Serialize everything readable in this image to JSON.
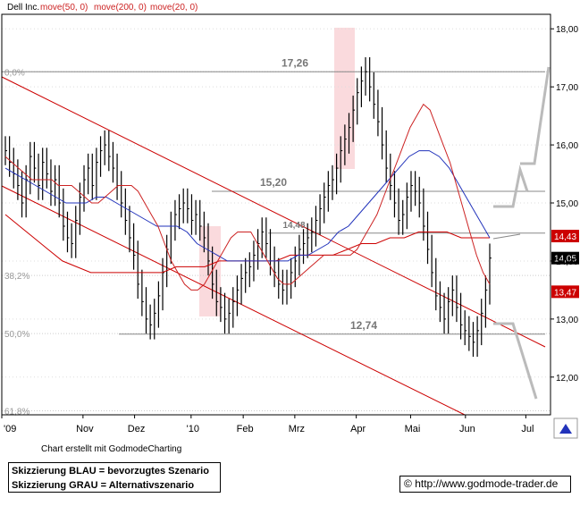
{
  "chart_data": {
    "type": "line",
    "title": "Dell Inc.",
    "series_labels": [
      "move(50, 0)",
      "move(200, 0)",
      "move(20, 0)"
    ],
    "x_ticks": [
      "'09",
      "Nov",
      "Dez",
      "'10",
      "Feb",
      "Mrz",
      "Apr",
      "Mai",
      "Jun",
      "Jul"
    ],
    "y_ticks": [
      "18,00",
      "17,00",
      "16,00",
      "15,00",
      "14,00",
      "13,00",
      "12,00"
    ],
    "ylim": [
      11.35,
      18.25
    ],
    "fib_levels": [
      {
        "label": "0,0%",
        "value": 17.26
      },
      {
        "label": "38,2%",
        "value": 13.75
      },
      {
        "label": "50,0%",
        "value": 12.75
      },
      {
        "label": "61,8%",
        "value": 11.42
      }
    ],
    "support_resistance": [
      {
        "label": "17,26",
        "value": 17.26
      },
      {
        "label": "15,20",
        "value": 15.2
      },
      {
        "label": "14,48",
        "value": 14.48
      },
      {
        "label": "12,74",
        "value": 12.74
      }
    ],
    "price_tags": [
      {
        "label": "14,43",
        "value": 14.43,
        "color": "#cc0000"
      },
      {
        "label": "14,05",
        "value": 14.05,
        "color": "#000000"
      },
      {
        "label": "13,47",
        "value": 13.47,
        "color": "#cc0000"
      }
    ],
    "closes": [
      15.9,
      15.7,
      15.5,
      15.3,
      15.0,
      15.4,
      15.8,
      15.6,
      15.3,
      15.7,
      15.5,
      15.2,
      15.4,
      15.0,
      14.6,
      14.4,
      14.3,
      14.7,
      15.1,
      15.4,
      15.6,
      15.3,
      15.7,
      15.9,
      16.0,
      15.8,
      15.6,
      15.3,
      15.0,
      14.7,
      14.4,
      14.1,
      13.6,
      13.3,
      13.0,
      12.9,
      13.1,
      13.4,
      13.8,
      14.2,
      14.6,
      14.8,
      14.9,
      15.0,
      14.9,
      14.7,
      14.8,
      14.6,
      14.4,
      14.0,
      13.6,
      13.3,
      13.2,
      13.0,
      13.1,
      13.3,
      13.5,
      13.7,
      13.8,
      13.9,
      14.1,
      14.3,
      14.5,
      14.3,
      14.0,
      13.8,
      13.6,
      13.5,
      13.6,
      13.8,
      14.0,
      14.2,
      14.3,
      14.4,
      14.5,
      14.7,
      14.9,
      15.1,
      15.3,
      15.4,
      15.6,
      15.9,
      16.1,
      16.3,
      16.6,
      16.9,
      17.1,
      17.26,
      17.0,
      16.7,
      16.4,
      16.0,
      15.6,
      15.3,
      15.0,
      14.7,
      14.8,
      15.1,
      15.3,
      15.2,
      15.0,
      14.6,
      14.2,
      13.8,
      13.4,
      13.2,
      13.0,
      13.3,
      13.5,
      13.2,
      12.9,
      12.8,
      12.7,
      12.6,
      12.8,
      13.1,
      13.5,
      14.05
    ],
    "ma20": [
      15.8,
      15.7,
      15.6,
      15.5,
      15.4,
      15.4,
      15.4,
      15.4,
      15.3,
      15.3,
      15.3,
      15.2,
      15.1,
      15.0,
      15.0,
      15.1,
      15.2,
      15.3,
      15.3,
      15.3,
      15.2,
      15.0,
      14.8,
      14.6,
      14.3,
      14.0,
      13.8,
      13.6,
      13.5,
      13.5,
      13.6,
      13.8,
      14.0,
      14.2,
      14.4,
      14.5,
      14.5,
      14.5,
      14.3,
      14.1,
      13.9,
      13.7,
      13.6,
      13.6,
      13.7,
      13.8,
      13.9,
      14.0,
      14.1,
      14.1,
      14.1,
      14.1,
      14.1,
      14.2,
      14.4,
      14.6,
      14.8,
      15.1,
      15.4,
      15.7,
      16.0,
      16.3,
      16.5,
      16.7,
      16.6,
      16.3,
      16.0,
      15.7,
      15.3,
      14.9,
      14.5,
      14.1,
      13.8,
      13.6
    ],
    "ma50": [
      15.6,
      15.5,
      15.4,
      15.3,
      15.2,
      15.1,
      15.0,
      15.0,
      15.0,
      15.1,
      15.1,
      15.0,
      14.9,
      14.8,
      14.7,
      14.6,
      14.6,
      14.6,
      14.5,
      14.3,
      14.2,
      14.1,
      14.0,
      14.0,
      14.0,
      14.0,
      14.0,
      14.0,
      14.0,
      14.1,
      14.1,
      14.2,
      14.3,
      14.5,
      14.6,
      14.8,
      15.0,
      15.2,
      15.4,
      15.6,
      15.8,
      15.9,
      15.9,
      15.8,
      15.6,
      15.3,
      15.0,
      14.7,
      14.4
    ],
    "ma200": [
      14.8,
      14.6,
      14.4,
      14.2,
      14.0,
      13.9,
      13.8,
      13.8,
      13.8,
      13.8,
      13.8,
      13.8,
      13.9,
      13.9,
      13.9,
      14.0,
      14.0,
      14.0,
      14.0,
      14.0,
      14.1,
      14.1,
      14.1,
      14.1,
      14.2,
      14.3,
      14.3,
      14.4,
      14.4,
      14.5,
      14.5,
      14.5,
      14.4,
      14.4,
      14.4
    ]
  },
  "credit": "Chart erstellt mit GodmodeCharting",
  "legend": {
    "line1": "Skizzierung BLAU = bevorzugtes Szenario",
    "line2": "Skizzierung GRAU = Alternativszenario"
  },
  "url": "http://www.godmode-trader.de",
  "colors": {
    "price": "#000000",
    "ma20": "#cc2222",
    "ma50": "#2233bb",
    "ma200": "#cc0000",
    "channel": "#cc0000",
    "hline": "#888888",
    "scenario": "#bbbbbb",
    "highlight": "#fadadd"
  }
}
